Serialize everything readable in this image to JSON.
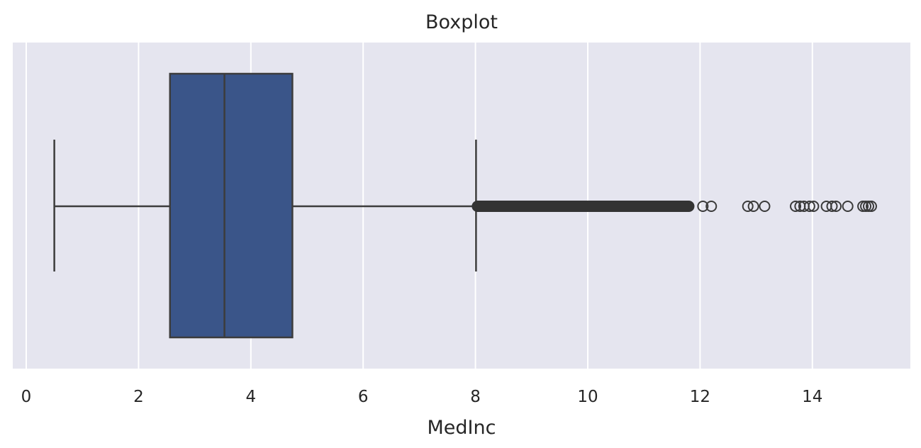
{
  "chart_data": {
    "type": "boxplot",
    "orientation": "horizontal",
    "title": "Boxplot",
    "xlabel": "MedInc",
    "ylabel": "",
    "xlim": [
      -0.25,
      15.75
    ],
    "xticks": [
      0,
      2,
      4,
      6,
      8,
      10,
      12,
      14
    ],
    "grid": true,
    "colors": {
      "plot_background": "#e5e5ef",
      "grid": "#ffffff",
      "box_fill": "#3a5589",
      "edge": "#3c3c3c",
      "text": "#262626"
    },
    "box": {
      "whisker_low": 0.5,
      "q1": 2.56,
      "median": 3.53,
      "q3": 4.74,
      "whisker_high": 8.01
    },
    "outlier_band": {
      "from": 8.01,
      "to": 11.9
    },
    "outliers": [
      12.05,
      12.2,
      12.85,
      12.95,
      13.15,
      13.7,
      13.78,
      13.85,
      13.95,
      14.02,
      14.25,
      14.35,
      14.42,
      14.63,
      14.9,
      14.95,
      15.0,
      15.05
    ]
  }
}
